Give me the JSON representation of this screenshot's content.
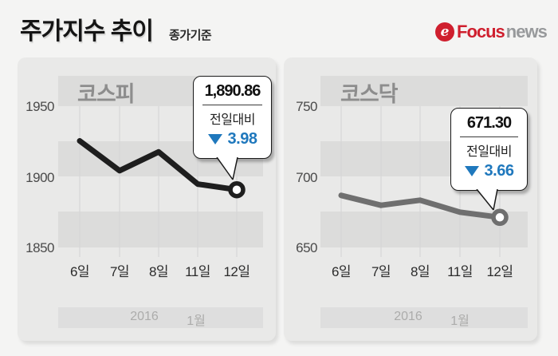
{
  "header": {
    "title": "주가지수 추이",
    "subtitle": "종가기준",
    "logo": {
      "icon": "focus-swirl-icon",
      "icon_glyph": "e",
      "brand": "Focus",
      "suffix": "news"
    }
  },
  "colors": {
    "accent_blue": "#1f78bd",
    "kospi_line": "#1e1e1e",
    "kosdaq_line": "#6f6f6f",
    "logo_red": "#cf1f2e",
    "logo_gray": "#97999b"
  },
  "period_band": {
    "year": "2016",
    "month": "1월"
  },
  "chart_data": [
    {
      "type": "line",
      "name": "코스피",
      "categories": [
        "6일",
        "7일",
        "8일",
        "11일",
        "12일"
      ],
      "values": [
        1925.43,
        1904.33,
        1917.62,
        1894.84,
        1890.86
      ],
      "y_ticks": [
        "1950",
        "1900",
        "1850"
      ],
      "ylim": [
        1850,
        1950
      ],
      "grid": "vertical",
      "line_color_key": "kospi_line",
      "annotation": {
        "value": "1,890.86",
        "label": "전일대비",
        "direction": "down",
        "change": "3.98"
      }
    },
    {
      "type": "line",
      "name": "코스닥",
      "categories": [
        "6일",
        "7일",
        "8일",
        "11일",
        "12일"
      ],
      "values": [
        686.84,
        679.82,
        683.45,
        674.96,
        671.3
      ],
      "y_ticks": [
        "750",
        "700",
        "650"
      ],
      "ylim": [
        650,
        750
      ],
      "grid": "vertical",
      "line_color_key": "kosdaq_line",
      "annotation": {
        "value": "671.30",
        "label": "전일대비",
        "direction": "down",
        "change": "3.66"
      }
    }
  ]
}
